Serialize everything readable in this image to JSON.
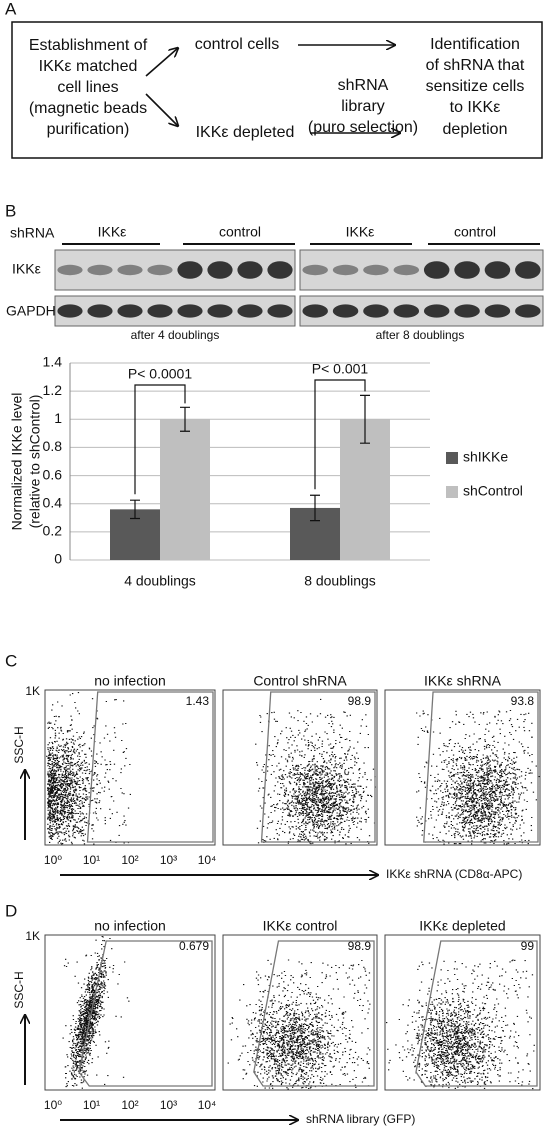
{
  "panel_a": {
    "label": "A",
    "left": [
      "Establishment of",
      "IKKε matched",
      "cell lines",
      "(magnetic beads",
      "purification)"
    ],
    "top_middle": "control cells",
    "bottom_middle": "IKKε depleted",
    "center": [
      "shRNA",
      "library",
      "(puro selection)"
    ],
    "right": [
      "Identification",
      "of shRNA that",
      "sensitize cells",
      "to IKKε",
      "depletion"
    ]
  },
  "panel_b": {
    "label": "B",
    "row_label": "shRNA",
    "groups": [
      "IKKε",
      "control",
      "IKKε",
      "control"
    ],
    "blot_labels": [
      "IKKε",
      "GAPDH"
    ],
    "captions": [
      "after 4 doublings",
      "after 8 doublings"
    ]
  },
  "chart_data": {
    "type": "bar",
    "y_label": [
      "Normalized IKKe level",
      "(relative to shControl)"
    ],
    "categories": [
      "4 doublings",
      "8 doublings"
    ],
    "series": [
      {
        "name": "shIKKe",
        "color": "#595959",
        "values": [
          0.36,
          0.37
        ],
        "errors": [
          0.065,
          0.09
        ]
      },
      {
        "name": "shControl",
        "color": "#bfbfbf",
        "values": [
          1.0,
          1.0
        ],
        "errors": [
          0.085,
          0.17
        ]
      }
    ],
    "ylim": [
      0,
      1.4
    ],
    "yticks": [
      0,
      0.2,
      0.4,
      0.6,
      0.8,
      1,
      1.2,
      1.4
    ],
    "grid": true,
    "legend": "right",
    "annotations": [
      "P< 0.0001",
      "P< 0.001"
    ]
  },
  "panel_c": {
    "label": "C",
    "y_max_label": "1K",
    "y_label": "SSC-H",
    "x_ticks": [
      "10⁰",
      "10¹",
      "10²",
      "10³",
      "10⁴"
    ],
    "x_label": "IKKε shRNA (CD8α-APC)",
    "plots": [
      {
        "title": "no infection",
        "value": 1.43
      },
      {
        "title": "Control shRNA",
        "value": 98.9
      },
      {
        "title": "IKKε shRNA",
        "value": 93.8
      }
    ]
  },
  "panel_d": {
    "label": "D",
    "y_max_label": "1K",
    "y_label": "SSC-H",
    "x_ticks": [
      "10⁰",
      "10¹",
      "10²",
      "10³",
      "10⁴"
    ],
    "x_label": "shRNA library (GFP)",
    "plots": [
      {
        "title": "no infection",
        "value": 0.679
      },
      {
        "title": "IKKε control",
        "value": 98.9
      },
      {
        "title": "IKKε depleted",
        "value": 99
      }
    ]
  }
}
